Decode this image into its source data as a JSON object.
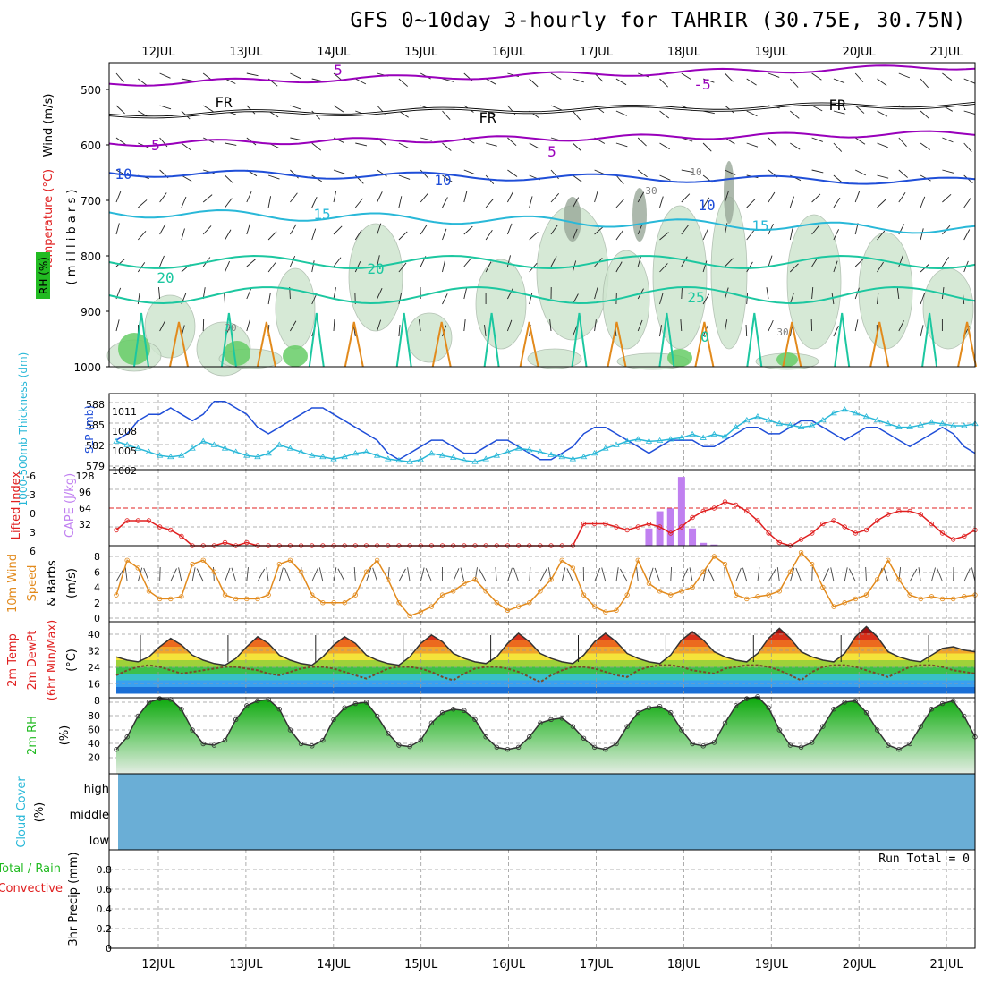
{
  "title": "GFS 0~10day 3-hourly for TAHRIR (30.75E, 30.75N)",
  "dates": [
    "12JUL",
    "13JUL",
    "14JUL",
    "15JUL",
    "16JUL",
    "17JUL",
    "18JUL",
    "19JUL",
    "20JUL",
    "21JUL"
  ],
  "colors": {
    "purple": "#9900bb",
    "blue": "#1f4ed8",
    "cyan": "#29b8d8",
    "teal": "#1cc7a0",
    "orange": "#e28a1c",
    "red": "#e02020",
    "grey": "#808080",
    "cloud": "#6aaed6",
    "rh_green": "#22bb22"
  },
  "panels": {
    "upper": {
      "ylabel_wind": "Wind (m/s)",
      "ylabel_temp": "Temperature (°C)",
      "ylabel_rh": "RH (%)",
      "ylabel_mb": "( m i l l i b a r s )",
      "ticks": [
        "500",
        "600",
        "700",
        "800",
        "900",
        "1000"
      ],
      "contour_labels": [
        "5",
        "FR",
        "FR",
        "FR",
        "-5",
        "5",
        "5",
        "10",
        "10",
        "10",
        "15",
        "15",
        "20",
        "20",
        "25",
        "30",
        "30",
        "30",
        "10",
        "0"
      ]
    },
    "thickness": {
      "ylabel_left": "1000-500mb Thickness (dm)",
      "ylabel_right": "SLP (mb)",
      "left_ticks": [
        "588",
        "585",
        "582",
        "579"
      ],
      "right_ticks": [
        "1011",
        "1008",
        "1005",
        "1002"
      ]
    },
    "cape": {
      "ylabel_left": "Lifted Index",
      "ylabel_right": "CAPE (J/kg)",
      "li_ticks": [
        "-6",
        "-3",
        "0",
        "3",
        "6"
      ],
      "cape_ticks": [
        "128",
        "96",
        "64",
        "32"
      ]
    },
    "wind": {
      "ylabel_a": "10m Wind",
      "ylabel_b": "Speed",
      "ylabel_c": "& Barbs",
      "unit": "(m/s)",
      "ticks": [
        "8",
        "6",
        "4",
        "2",
        "0"
      ]
    },
    "temp": {
      "ylabel_a": "2m Temp",
      "ylabel_b": "2m DewPt",
      "ylabel_c": "(6hr Min/Max)",
      "unit": "(°C)",
      "ticks": [
        "40",
        "32",
        "24",
        "16",
        "8"
      ]
    },
    "rh": {
      "ylabel": "2m RH",
      "unit": "(%)",
      "ticks": [
        "80",
        "60",
        "40",
        "20"
      ]
    },
    "cloud": {
      "ylabel": "Cloud Cover",
      "unit": "(%)",
      "levels": [
        "high",
        "middle",
        "low"
      ]
    },
    "precip": {
      "ylabel_a": "Total / Rain",
      "ylabel_b": "Convective",
      "ylabel_c": "3hr Precip (mm)",
      "ticks": [
        "0.8",
        "0.6",
        "0.4",
        "0.2",
        "0"
      ],
      "run_total": "Run Total = 0"
    }
  },
  "chart_data": [
    {
      "type": "line",
      "panel": "thickness",
      "series": [
        {
          "name": "SLP (mb)",
          "color": "#1f4ed8",
          "values": [
            1006,
            1007,
            1009,
            1010,
            1010,
            1011,
            1010,
            1009,
            1010,
            1012,
            1012,
            1011,
            1010,
            1008,
            1007,
            1008,
            1009,
            1010,
            1011,
            1011,
            1010,
            1009,
            1008,
            1007,
            1006,
            1004,
            1003,
            1004,
            1005,
            1006,
            1006,
            1005,
            1004,
            1004,
            1005,
            1006,
            1006,
            1005,
            1004,
            1003,
            1003,
            1004,
            1005,
            1007,
            1008,
            1008,
            1007,
            1006,
            1005,
            1004,
            1005,
            1006,
            1006,
            1006,
            1005,
            1005,
            1006,
            1007,
            1008,
            1008,
            1007,
            1007,
            1008,
            1009,
            1009,
            1008,
            1007,
            1006,
            1007,
            1008,
            1008,
            1007,
            1006,
            1005,
            1006,
            1007,
            1008,
            1007,
            1005,
            1004
          ]
        },
        {
          "name": "Thickness (dm)",
          "color": "#29b8d8",
          "values": [
            582.5,
            582.0,
            581.5,
            581.0,
            580.5,
            580.3,
            580.5,
            581.5,
            582.5,
            582.0,
            581.5,
            581.0,
            580.5,
            580.3,
            580.8,
            582.0,
            581.5,
            581.0,
            580.5,
            580.3,
            580.0,
            580.3,
            580.8,
            581.0,
            580.5,
            580.0,
            579.8,
            579.6,
            579.9,
            580.8,
            580.5,
            580.2,
            579.8,
            579.6,
            580.0,
            580.5,
            581.0,
            581.5,
            581.3,
            581.0,
            580.6,
            580.3,
            580.0,
            580.3,
            580.8,
            581.5,
            582.0,
            582.5,
            582.8,
            582.5,
            582.6,
            582.8,
            583.0,
            583.5,
            583.0,
            583.5,
            583.2,
            584.5,
            585.5,
            586.0,
            585.5,
            585.0,
            584.8,
            584.5,
            584.7,
            585.5,
            586.5,
            587.0,
            586.5,
            586.0,
            585.5,
            585.0,
            584.5,
            584.5,
            584.8,
            585.2,
            585.0,
            584.7,
            584.7,
            585.0
          ]
        }
      ]
    },
    {
      "type": "bar",
      "panel": "cape",
      "name": "CAPE (J/kg)",
      "color": "#c080f0",
      "index": [
        49,
        50,
        51,
        52,
        53,
        54,
        55
      ],
      "values": [
        30,
        60,
        65,
        120,
        30,
        5,
        2
      ]
    },
    {
      "type": "line",
      "panel": "cape",
      "name": "Lifted Index",
      "color": "#e02020",
      "values": [
        3.5,
        2,
        2,
        2,
        3,
        3.5,
        4.5,
        6,
        6,
        6,
        5.5,
        6,
        5.5,
        6,
        6,
        6,
        6,
        6,
        6,
        6,
        6,
        6,
        6,
        6,
        6,
        6,
        6,
        6,
        6,
        6,
        6,
        6,
        6,
        6,
        6,
        6,
        6,
        6,
        6,
        6,
        6,
        6,
        6,
        2.5,
        2.5,
        2.5,
        3,
        3.5,
        3,
        2.5,
        3,
        4,
        3,
        1.5,
        0.5,
        0,
        -1,
        -0.5,
        0.5,
        2,
        4,
        5.5,
        6,
        5,
        4,
        2.5,
        2,
        3,
        4,
        3.5,
        2,
        1,
        0.5,
        0.5,
        1,
        2.5,
        4,
        5,
        4.5,
        3.5
      ]
    },
    {
      "type": "line",
      "panel": "wind",
      "name": "10m Wind Speed (m/s)",
      "color": "#e28a1c",
      "values": [
        3,
        7.5,
        6.5,
        3.5,
        2.5,
        2.5,
        2.8,
        7,
        7.5,
        6,
        3,
        2.5,
        2.5,
        2.5,
        3,
        7,
        7.5,
        6,
        3,
        2,
        2,
        2,
        3,
        6,
        7.5,
        5,
        2,
        0.3,
        0.8,
        1.5,
        3,
        3.5,
        4.5,
        5,
        3.5,
        2,
        1,
        1.5,
        2,
        3.5,
        5,
        7.5,
        6.5,
        3,
        1.5,
        0.8,
        1,
        3,
        7.5,
        4.5,
        3.5,
        3,
        3.5,
        4,
        6,
        8,
        7,
        3,
        2.5,
        2.8,
        3,
        3.5,
        6,
        8.5,
        7,
        4,
        1.5,
        2,
        2.5,
        3,
        5,
        7.5,
        5,
        3,
        2.5,
        2.8,
        2.5,
        2.5,
        2.8,
        3
      ]
    },
    {
      "type": "area",
      "panel": "temp",
      "name": "2m Temp (°C)",
      "values": [
        26,
        24,
        23,
        26,
        32,
        37,
        33,
        27,
        24,
        22,
        21,
        25,
        32,
        38,
        34,
        27,
        24,
        22,
        21,
        26,
        33,
        38,
        34,
        27,
        24,
        22,
        21,
        26,
        34,
        39,
        35,
        28,
        25,
        23,
        22,
        26,
        34,
        40,
        35,
        28,
        25,
        23,
        22,
        27,
        35,
        40,
        35,
        28,
        25,
        23,
        22,
        27,
        36,
        41,
        36,
        29,
        26,
        24,
        23,
        28,
        37,
        43,
        37,
        29,
        26,
        24,
        23,
        28,
        38,
        44,
        38,
        29,
        26,
        24,
        23,
        27,
        31,
        32,
        30,
        29
      ]
    },
    {
      "type": "line",
      "panel": "temp",
      "name": "2m DewPt (°C)",
      "values": [
        15,
        18,
        20,
        21,
        20,
        18,
        16,
        17,
        18,
        19,
        20,
        20,
        19,
        18,
        16,
        15,
        17,
        19,
        20,
        20,
        19,
        17,
        15,
        13,
        16,
        19,
        20,
        20,
        19,
        17,
        14,
        12,
        16,
        19,
        20,
        20,
        19,
        17,
        14,
        11,
        15,
        18,
        20,
        20,
        19,
        17,
        15,
        14,
        18,
        20,
        21,
        21,
        20,
        18,
        17,
        16,
        19,
        20,
        21,
        21,
        20,
        18,
        15,
        12,
        17,
        20,
        21,
        21,
        20,
        18,
        16,
        14,
        17,
        20,
        21,
        21,
        20,
        18,
        17,
        16
      ]
    },
    {
      "type": "area",
      "panel": "rh",
      "name": "2m RH (%)",
      "color": "#22bb22",
      "values": [
        12,
        30,
        60,
        80,
        85,
        84,
        70,
        40,
        20,
        18,
        25,
        55,
        75,
        82,
        84,
        70,
        40,
        20,
        17,
        25,
        55,
        72,
        78,
        80,
        60,
        35,
        18,
        16,
        25,
        50,
        65,
        70,
        68,
        55,
        30,
        15,
        12,
        15,
        30,
        50,
        55,
        57,
        45,
        28,
        15,
        12,
        20,
        45,
        65,
        72,
        74,
        65,
        40,
        20,
        17,
        22,
        50,
        75,
        85,
        88,
        72,
        40,
        18,
        15,
        22,
        45,
        70,
        80,
        82,
        65,
        40,
        18,
        12,
        20,
        45,
        70,
        78,
        82,
        60,
        30
      ]
    },
    {
      "type": "area",
      "panel": "cloud",
      "name": "Cloud Cover (%)",
      "series": [
        {
          "name": "high",
          "values": [
            0
          ]
        },
        {
          "name": "middle",
          "values": [
            0
          ]
        },
        {
          "name": "low",
          "values": [
            0
          ]
        }
      ]
    },
    {
      "type": "bar",
      "panel": "precip",
      "name": "3hr Precip (mm)",
      "values": [
        0
      ],
      "ylim": [
        0,
        1
      ]
    }
  ]
}
